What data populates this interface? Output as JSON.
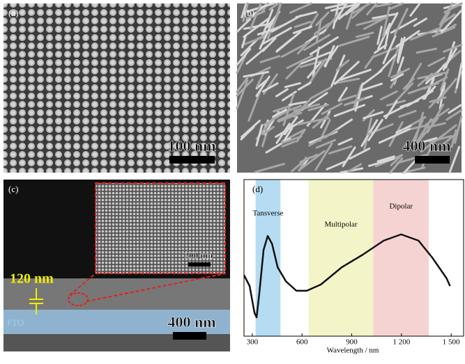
{
  "panels": [
    {
      "label": "(a)",
      "scale_bar": "100 nm"
    },
    {
      "label": "(b)",
      "scale_bar": "400 nm"
    },
    {
      "label": "(c)",
      "scale_bar": "400 nm",
      "inset_scale_bar": "200 nm",
      "thickness": "120 nm",
      "layer": "FTO"
    }
  ],
  "chart_data": {
    "type": "line",
    "label": "(d)",
    "xlabel": "Wavelength / nm",
    "x": [
      250,
      284,
      313,
      326,
      343,
      368,
      393,
      419,
      453,
      503,
      566,
      629,
      714,
      840,
      966,
      1093,
      1198,
      1303,
      1387,
      1472,
      1493
    ],
    "values": [
      0.39,
      0.32,
      0.15,
      0.12,
      0.28,
      0.55,
      0.64,
      0.59,
      0.44,
      0.35,
      0.29,
      0.29,
      0.33,
      0.44,
      0.52,
      0.61,
      0.65,
      0.61,
      0.5,
      0.37,
      0.32
    ],
    "color": "#111111",
    "xlim": [
      250,
      1575
    ],
    "ylim": [
      0,
      1
    ],
    "xticks": [
      300,
      600,
      900,
      {
        "value": 1200,
        "label": "1 200"
      },
      {
        "value": 1500,
        "label": "1 500"
      }
    ],
    "regions": [
      {
        "name": "Tansverse",
        "range": [
          320,
          470
        ],
        "color": "#b5dcf2"
      },
      {
        "name": "Multipolar",
        "range": [
          640,
          1030
        ],
        "color": "#f3f5c8"
      },
      {
        "name": "Dipolar",
        "range": [
          1030,
          1365
        ],
        "color": "#f6d3d3"
      }
    ]
  }
}
